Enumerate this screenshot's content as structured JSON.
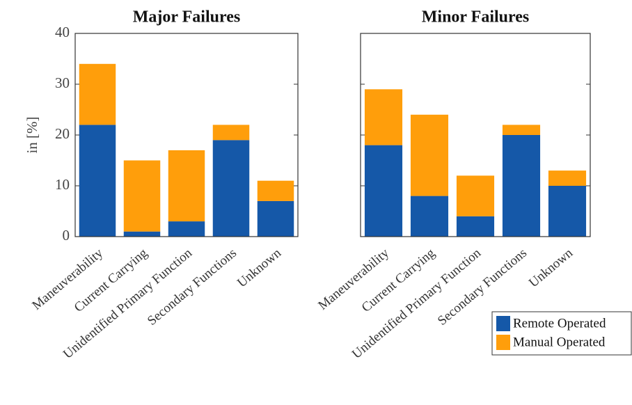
{
  "chart_data": [
    {
      "type": "stacked_bar",
      "title": "Major Failures",
      "ylabel": "in [%]",
      "categories": [
        "Maneuverability",
        "Current Carrying",
        "Unidentified Primary Function",
        "Secondary Functions",
        "Unknown"
      ],
      "series": [
        {
          "name": "Remote Operated",
          "color": "#1558a8",
          "values": [
            22,
            1,
            3,
            19,
            7
          ]
        },
        {
          "name": "Manual Operated",
          "color": "#ff9e0b",
          "values": [
            12,
            14,
            14,
            3,
            4
          ]
        }
      ],
      "ylim": [
        0,
        40
      ],
      "yticks": [
        0,
        10,
        20,
        30,
        40
      ]
    },
    {
      "type": "stacked_bar",
      "title": "Minor Failures",
      "categories": [
        "Maneuverability",
        "Current Carrying",
        "Unidentified Primary Function",
        "Secondary Functions",
        "Unknown"
      ],
      "series": [
        {
          "name": "Remote Operated",
          "color": "#1558a8",
          "values": [
            18,
            8,
            4,
            20,
            10
          ]
        },
        {
          "name": "Manual Operated",
          "color": "#ff9e0b",
          "values": [
            11,
            16,
            8,
            2,
            3
          ]
        }
      ],
      "ylim": [
        0,
        40
      ],
      "yticks": [
        0,
        10,
        20,
        30,
        40
      ],
      "legend": "lower right"
    }
  ]
}
